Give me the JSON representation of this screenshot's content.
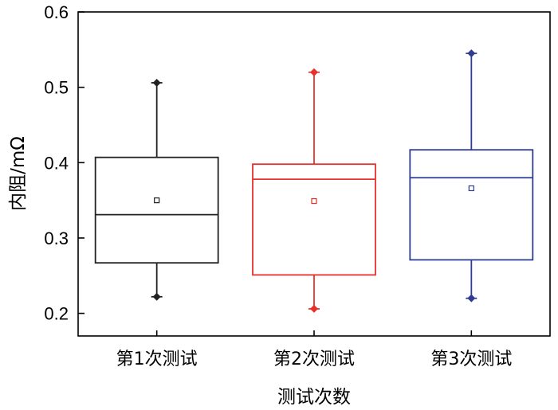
{
  "chart_data": {
    "type": "box",
    "title": "",
    "xlabel": "测试次数",
    "ylabel": "内阻/mΩ",
    "ylim": [
      0.17,
      0.6
    ],
    "yticks": [
      "0.2",
      "0.3",
      "0.4",
      "0.5",
      "0.6"
    ],
    "grid": false,
    "legend": "none",
    "categories": [
      "第1次测试",
      "第2次测试",
      "第3次测试"
    ],
    "series": [
      {
        "color": "#222222",
        "min": 0.222,
        "q1": 0.267,
        "median": 0.331,
        "q3": 0.407,
        "max": 0.506,
        "mean": 0.35
      },
      {
        "color": "#e8302c",
        "min": 0.206,
        "q1": 0.251,
        "median": 0.378,
        "q3": 0.398,
        "max": 0.52,
        "mean": 0.349
      },
      {
        "color": "#2e3c94",
        "min": 0.22,
        "q1": 0.271,
        "median": 0.38,
        "q3": 0.417,
        "max": 0.545,
        "mean": 0.366
      }
    ]
  }
}
